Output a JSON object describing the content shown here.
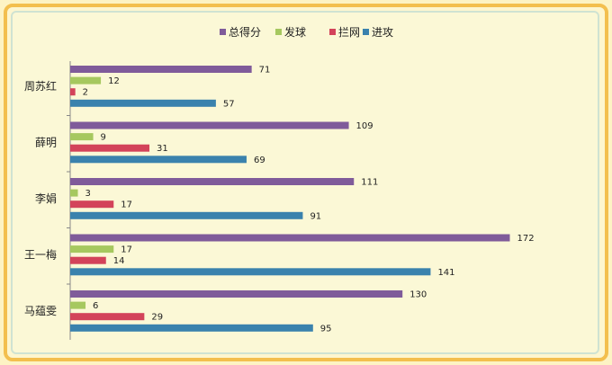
{
  "chart_data": {
    "type": "bar",
    "orientation": "horizontal",
    "categories": [
      "周苏红",
      "薛明",
      "李娟",
      "王一梅",
      "马蕴雯"
    ],
    "series": [
      {
        "name": "总得分",
        "color": "#7f5b9a",
        "values": [
          71,
          109,
          111,
          172,
          130
        ]
      },
      {
        "name": "发球",
        "color": "#a6c85f",
        "values": [
          12,
          9,
          3,
          17,
          6
        ]
      },
      {
        "name": "拦网",
        "color": "#d3435a",
        "values": [
          2,
          31,
          17,
          14,
          29
        ]
      },
      {
        "name": "进攻",
        "color": "#3a82ad",
        "values": [
          57,
          69,
          91,
          141,
          95
        ]
      }
    ],
    "xlim": [
      0,
      190
    ],
    "legend_position": "top",
    "grid": false
  }
}
